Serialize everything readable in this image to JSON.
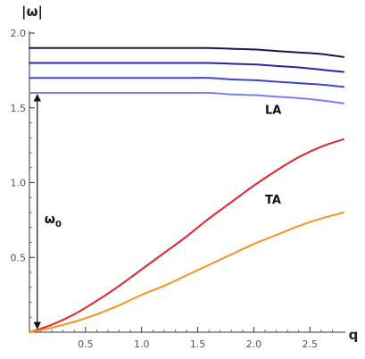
{
  "chart_data": {
    "type": "line",
    "xlabel": "q",
    "ylabel": "|ω|",
    "xlim": [
      0,
      2.8
    ],
    "ylim": [
      0,
      2.0
    ],
    "xticks": [
      0.5,
      1.0,
      1.5,
      2.0,
      2.5
    ],
    "xtick_labels": [
      "0.5",
      "1.0",
      "1.5",
      "2.0",
      "2.5"
    ],
    "yticks": [
      0.5,
      1.0,
      1.5,
      2.0
    ],
    "ytick_labels": [
      "0.5",
      "1.0",
      "1.5",
      "2.0"
    ],
    "x": [
      0,
      0.2,
      0.4,
      0.6,
      0.8,
      1.0,
      1.2,
      1.4,
      1.6,
      1.8,
      2.0,
      2.2,
      2.4,
      2.6,
      2.8
    ],
    "series": [
      {
        "name": "LA",
        "color": "#e8202a",
        "values": [
          0.0,
          0.05,
          0.12,
          0.21,
          0.31,
          0.42,
          0.53,
          0.64,
          0.76,
          0.87,
          0.98,
          1.08,
          1.17,
          1.24,
          1.29
        ]
      },
      {
        "name": "TA",
        "color": "#f7941d",
        "values": [
          0.0,
          0.03,
          0.07,
          0.12,
          0.18,
          0.25,
          0.31,
          0.38,
          0.45,
          0.52,
          0.59,
          0.65,
          0.71,
          0.76,
          0.8
        ]
      },
      {
        "color": "#7b7ff0",
        "values": [
          1.6,
          1.6,
          1.6,
          1.6,
          1.6,
          1.6,
          1.6,
          1.6,
          1.6,
          1.59,
          1.585,
          1.575,
          1.565,
          1.55,
          1.53
        ]
      },
      {
        "color": "#3c44d0",
        "values": [
          1.7,
          1.7,
          1.7,
          1.7,
          1.7,
          1.7,
          1.7,
          1.7,
          1.7,
          1.69,
          1.685,
          1.675,
          1.665,
          1.655,
          1.64
        ]
      },
      {
        "color": "#232a9e",
        "values": [
          1.8,
          1.8,
          1.8,
          1.8,
          1.8,
          1.8,
          1.8,
          1.8,
          1.8,
          1.795,
          1.79,
          1.78,
          1.77,
          1.755,
          1.74
        ]
      },
      {
        "color": "#141a55",
        "values": [
          1.9,
          1.9,
          1.9,
          1.9,
          1.9,
          1.9,
          1.9,
          1.9,
          1.9,
          1.895,
          1.89,
          1.88,
          1.87,
          1.86,
          1.84
        ]
      }
    ],
    "annotations": [
      {
        "text": "ω",
        "subscript": "0",
        "type": "double-arrow",
        "x": 0.07,
        "y_from": 0,
        "y_to": 1.6
      }
    ],
    "grid": false,
    "legend": "none"
  }
}
